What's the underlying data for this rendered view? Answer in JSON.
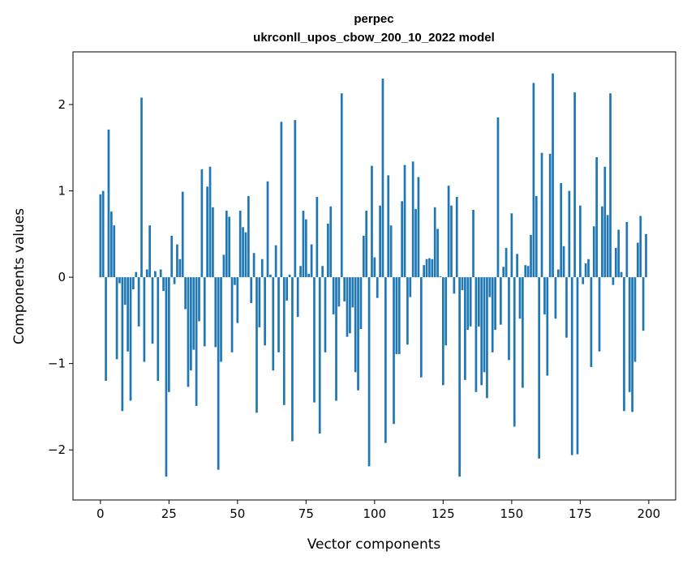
{
  "chart_data": {
    "type": "bar",
    "title": "perpec",
    "subtitle": "ukrconll_upos_cbow_200_10_2022 model",
    "xlabel": "Vector components",
    "ylabel": "Components values",
    "xlim": [
      -10,
      209.8
    ],
    "ylim": [
      -2.58,
      2.61
    ],
    "xticks": [
      0,
      25,
      50,
      75,
      100,
      125,
      150,
      175,
      200
    ],
    "yticks": [
      -2,
      -1,
      0,
      1,
      2
    ],
    "ytick_labels": [
      "−2",
      "−1",
      "0",
      "1",
      "2"
    ],
    "grid": false,
    "bar_color": "#1f77b4",
    "values": [
      0.96,
      1.0,
      -1.2,
      1.71,
      0.76,
      0.6,
      -0.95,
      -0.07,
      -1.55,
      -0.32,
      -0.86,
      -1.43,
      -0.14,
      0.06,
      -0.57,
      2.08,
      -0.98,
      0.09,
      0.6,
      -0.77,
      0.07,
      -1.2,
      0.09,
      -0.16,
      -2.31,
      -1.33,
      0.48,
      -0.08,
      0.38,
      0.21,
      0.99,
      -0.37,
      -1.27,
      -1.08,
      -0.84,
      -1.49,
      -0.51,
      1.25,
      -0.8,
      1.05,
      1.28,
      0.81,
      -0.81,
      -2.23,
      -0.98,
      0.26,
      0.77,
      0.7,
      -0.87,
      -0.09,
      -0.53,
      0.77,
      0.58,
      0.52,
      0.94,
      -0.3,
      0.28,
      -1.57,
      -0.58,
      0.21,
      -0.79,
      1.11,
      0.03,
      -1.08,
      0.37,
      -0.87,
      1.8,
      -1.48,
      -0.27,
      0.03,
      -1.9,
      1.82,
      -0.46,
      0.13,
      0.77,
      0.67,
      0.04,
      0.38,
      -1.45,
      0.93,
      -1.81,
      0.13,
      -0.87,
      0.62,
      0.82,
      -0.43,
      -1.43,
      -0.34,
      2.13,
      -0.28,
      -0.69,
      -0.65,
      -0.35,
      -1.1,
      -1.31,
      -0.6,
      0.48,
      0.77,
      -2.19,
      1.29,
      0.23,
      -0.24,
      0.83,
      2.3,
      -1.92,
      1.18,
      0.6,
      -1.7,
      -0.89,
      -0.89,
      0.88,
      1.3,
      -0.78,
      -0.23,
      1.34,
      0.79,
      1.16,
      -1.16,
      0.14,
      0.21,
      0.22,
      0.21,
      0.81,
      0.56,
      0.01,
      -1.25,
      -0.79,
      1.06,
      0.83,
      -0.19,
      0.93,
      -2.31,
      -0.15,
      -1.19,
      -0.61,
      -0.57,
      0.78,
      -1.33,
      -0.57,
      -1.25,
      -1.1,
      -1.4,
      -0.23,
      -0.87,
      -0.61,
      1.85,
      -0.55,
      0.12,
      0.34,
      -0.96,
      0.74,
      -1.73,
      0.27,
      -0.48,
      -1.28,
      0.14,
      0.13,
      0.49,
      2.25,
      0.94,
      -2.1,
      1.44,
      -0.43,
      -1.14,
      1.43,
      2.36,
      -0.48,
      0.09,
      1.09,
      0.36,
      -0.7,
      1.0,
      -2.06,
      2.14,
      -2.05,
      0.83,
      -0.08,
      0.16,
      0.21,
      -1.04,
      0.59,
      1.39,
      -0.86,
      0.82,
      1.28,
      0.72,
      2.13,
      -0.09,
      0.34,
      0.55,
      0.06,
      -1.55,
      0.64,
      -1.33,
      -1.56,
      -0.98,
      0.4,
      0.71,
      -0.62,
      0.5
    ]
  }
}
